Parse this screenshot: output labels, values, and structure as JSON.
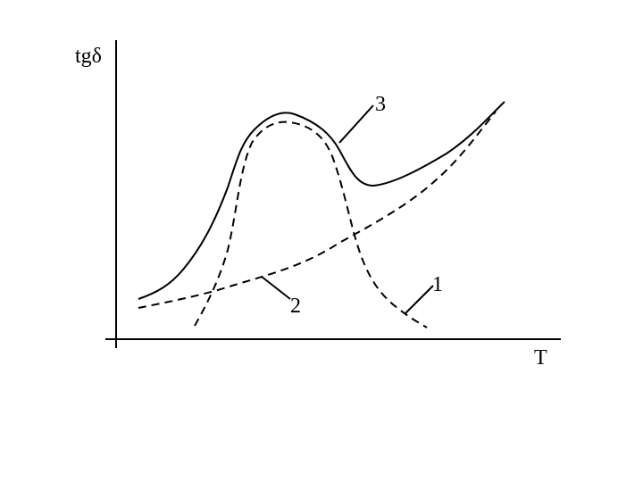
{
  "axes": {
    "y_label": "tgδ",
    "x_label": "T"
  },
  "curves": [
    {
      "label": "1"
    },
    {
      "label": "2"
    },
    {
      "label": "3"
    }
  ]
}
